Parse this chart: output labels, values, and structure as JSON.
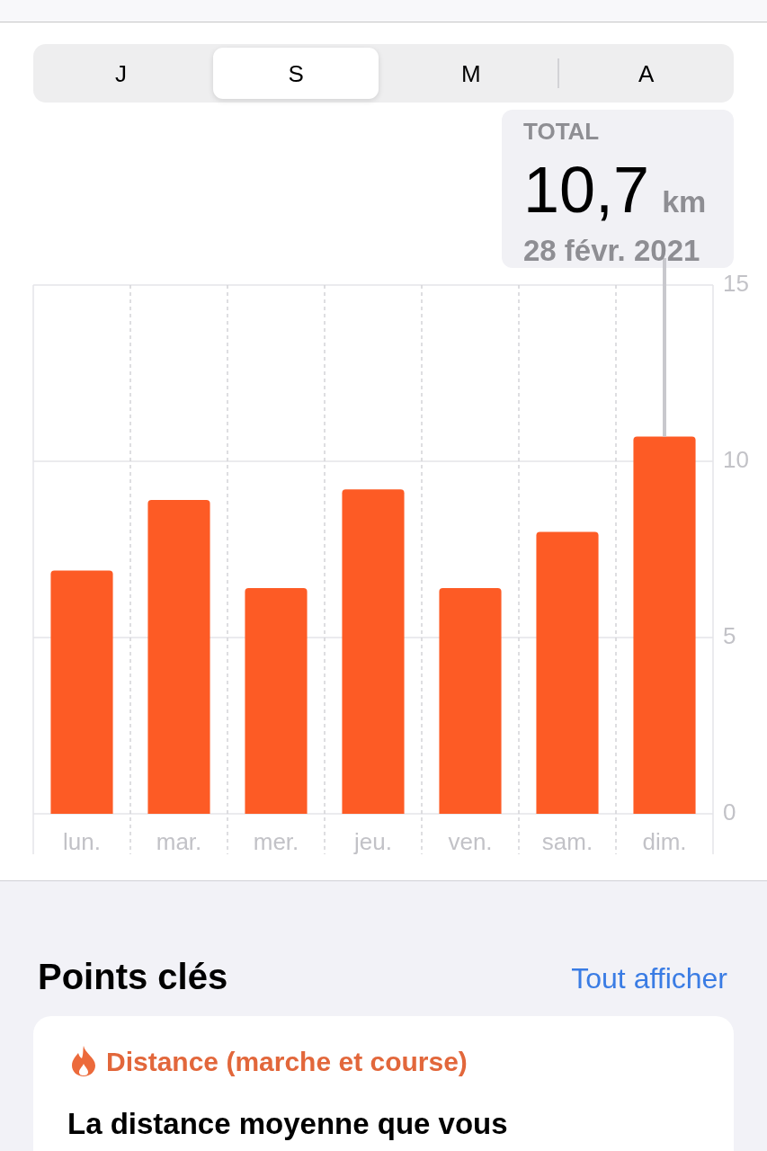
{
  "chart_data": {
    "type": "bar",
    "categories": [
      "lun.",
      "mar.",
      "mer.",
      "jeu.",
      "ven.",
      "sam.",
      "dim."
    ],
    "values": [
      6.9,
      8.9,
      6.4,
      9.2,
      6.4,
      8.0,
      10.7
    ],
    "color": "#fd5b25",
    "ylim": [
      0,
      15
    ],
    "yticks": [
      0,
      5,
      10,
      15
    ],
    "grid": true,
    "annotations": [
      "J",
      "S",
      "M",
      "A",
      "TOTAL",
      "10,7 km",
      {
        "text": "28 févr. 2021",
        "x": "dim.",
        "y": 10.7
      },
      "Points clés",
      "Tout afficher",
      "Distance (marche et course)",
      "La distance moyenne que vous"
    ]
  }
}
